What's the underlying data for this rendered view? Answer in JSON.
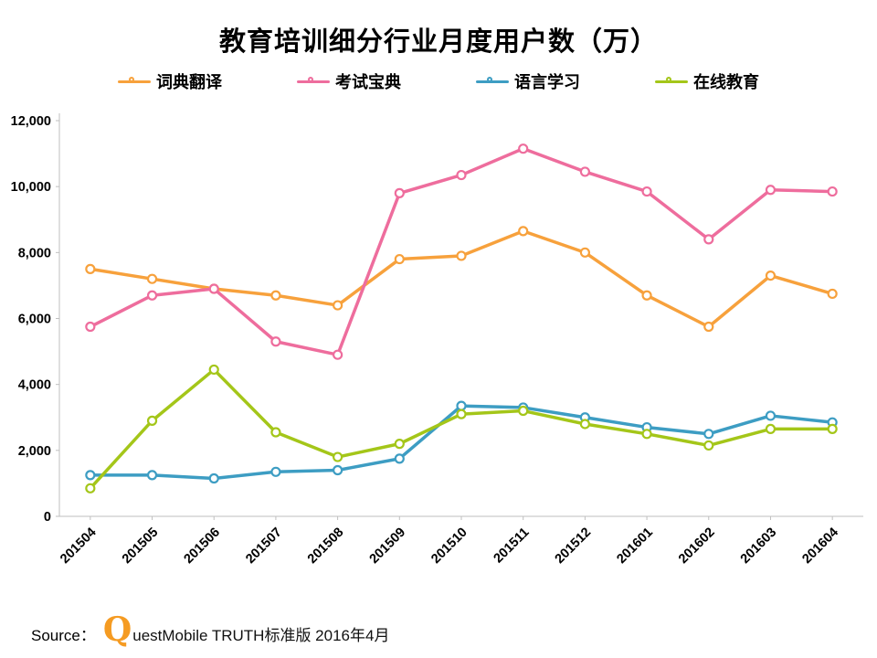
{
  "chart_data": {
    "type": "line",
    "title": "教育培训细分行业月度用户数（万）",
    "categories": [
      "201504",
      "201505",
      "201506",
      "201507",
      "201508",
      "201509",
      "201510",
      "201511",
      "201512",
      "201601",
      "201602",
      "201603",
      "201604"
    ],
    "series": [
      {
        "name": "词典翻译",
        "color": "#F7A13C",
        "values": [
          7500,
          7200,
          6900,
          6700,
          6400,
          7800,
          7900,
          8650,
          8000,
          6700,
          5750,
          7300,
          6750
        ]
      },
      {
        "name": "考试宝典",
        "color": "#EE6D9D",
        "values": [
          5750,
          6700,
          6900,
          5300,
          4900,
          9800,
          10350,
          11150,
          10450,
          9850,
          8400,
          9900,
          9850
        ]
      },
      {
        "name": "语言学习",
        "color": "#3D9DC3",
        "values": [
          1250,
          1250,
          1150,
          1350,
          1400,
          1750,
          3350,
          3300,
          3000,
          2700,
          2500,
          3050,
          2850
        ]
      },
      {
        "name": "在线教育",
        "color": "#A4C619",
        "values": [
          850,
          2900,
          4450,
          2550,
          1800,
          2200,
          3100,
          3200,
          2800,
          2500,
          2150,
          2650,
          2650
        ]
      }
    ],
    "ylim": [
      0,
      12000
    ],
    "ytick_interval": 2000,
    "ytick_labels": [
      "0",
      "2,000",
      "4,000",
      "6,000",
      "8,000",
      "10,000",
      "12,000"
    ],
    "legend_position": "top",
    "grid": false,
    "marker": "open-circle",
    "axis_color": "#BFBFBF"
  },
  "source": {
    "label": "Source：",
    "logo_letter": "Q",
    "rest": "uestMobile TRUTH标准版 2016年4月"
  }
}
